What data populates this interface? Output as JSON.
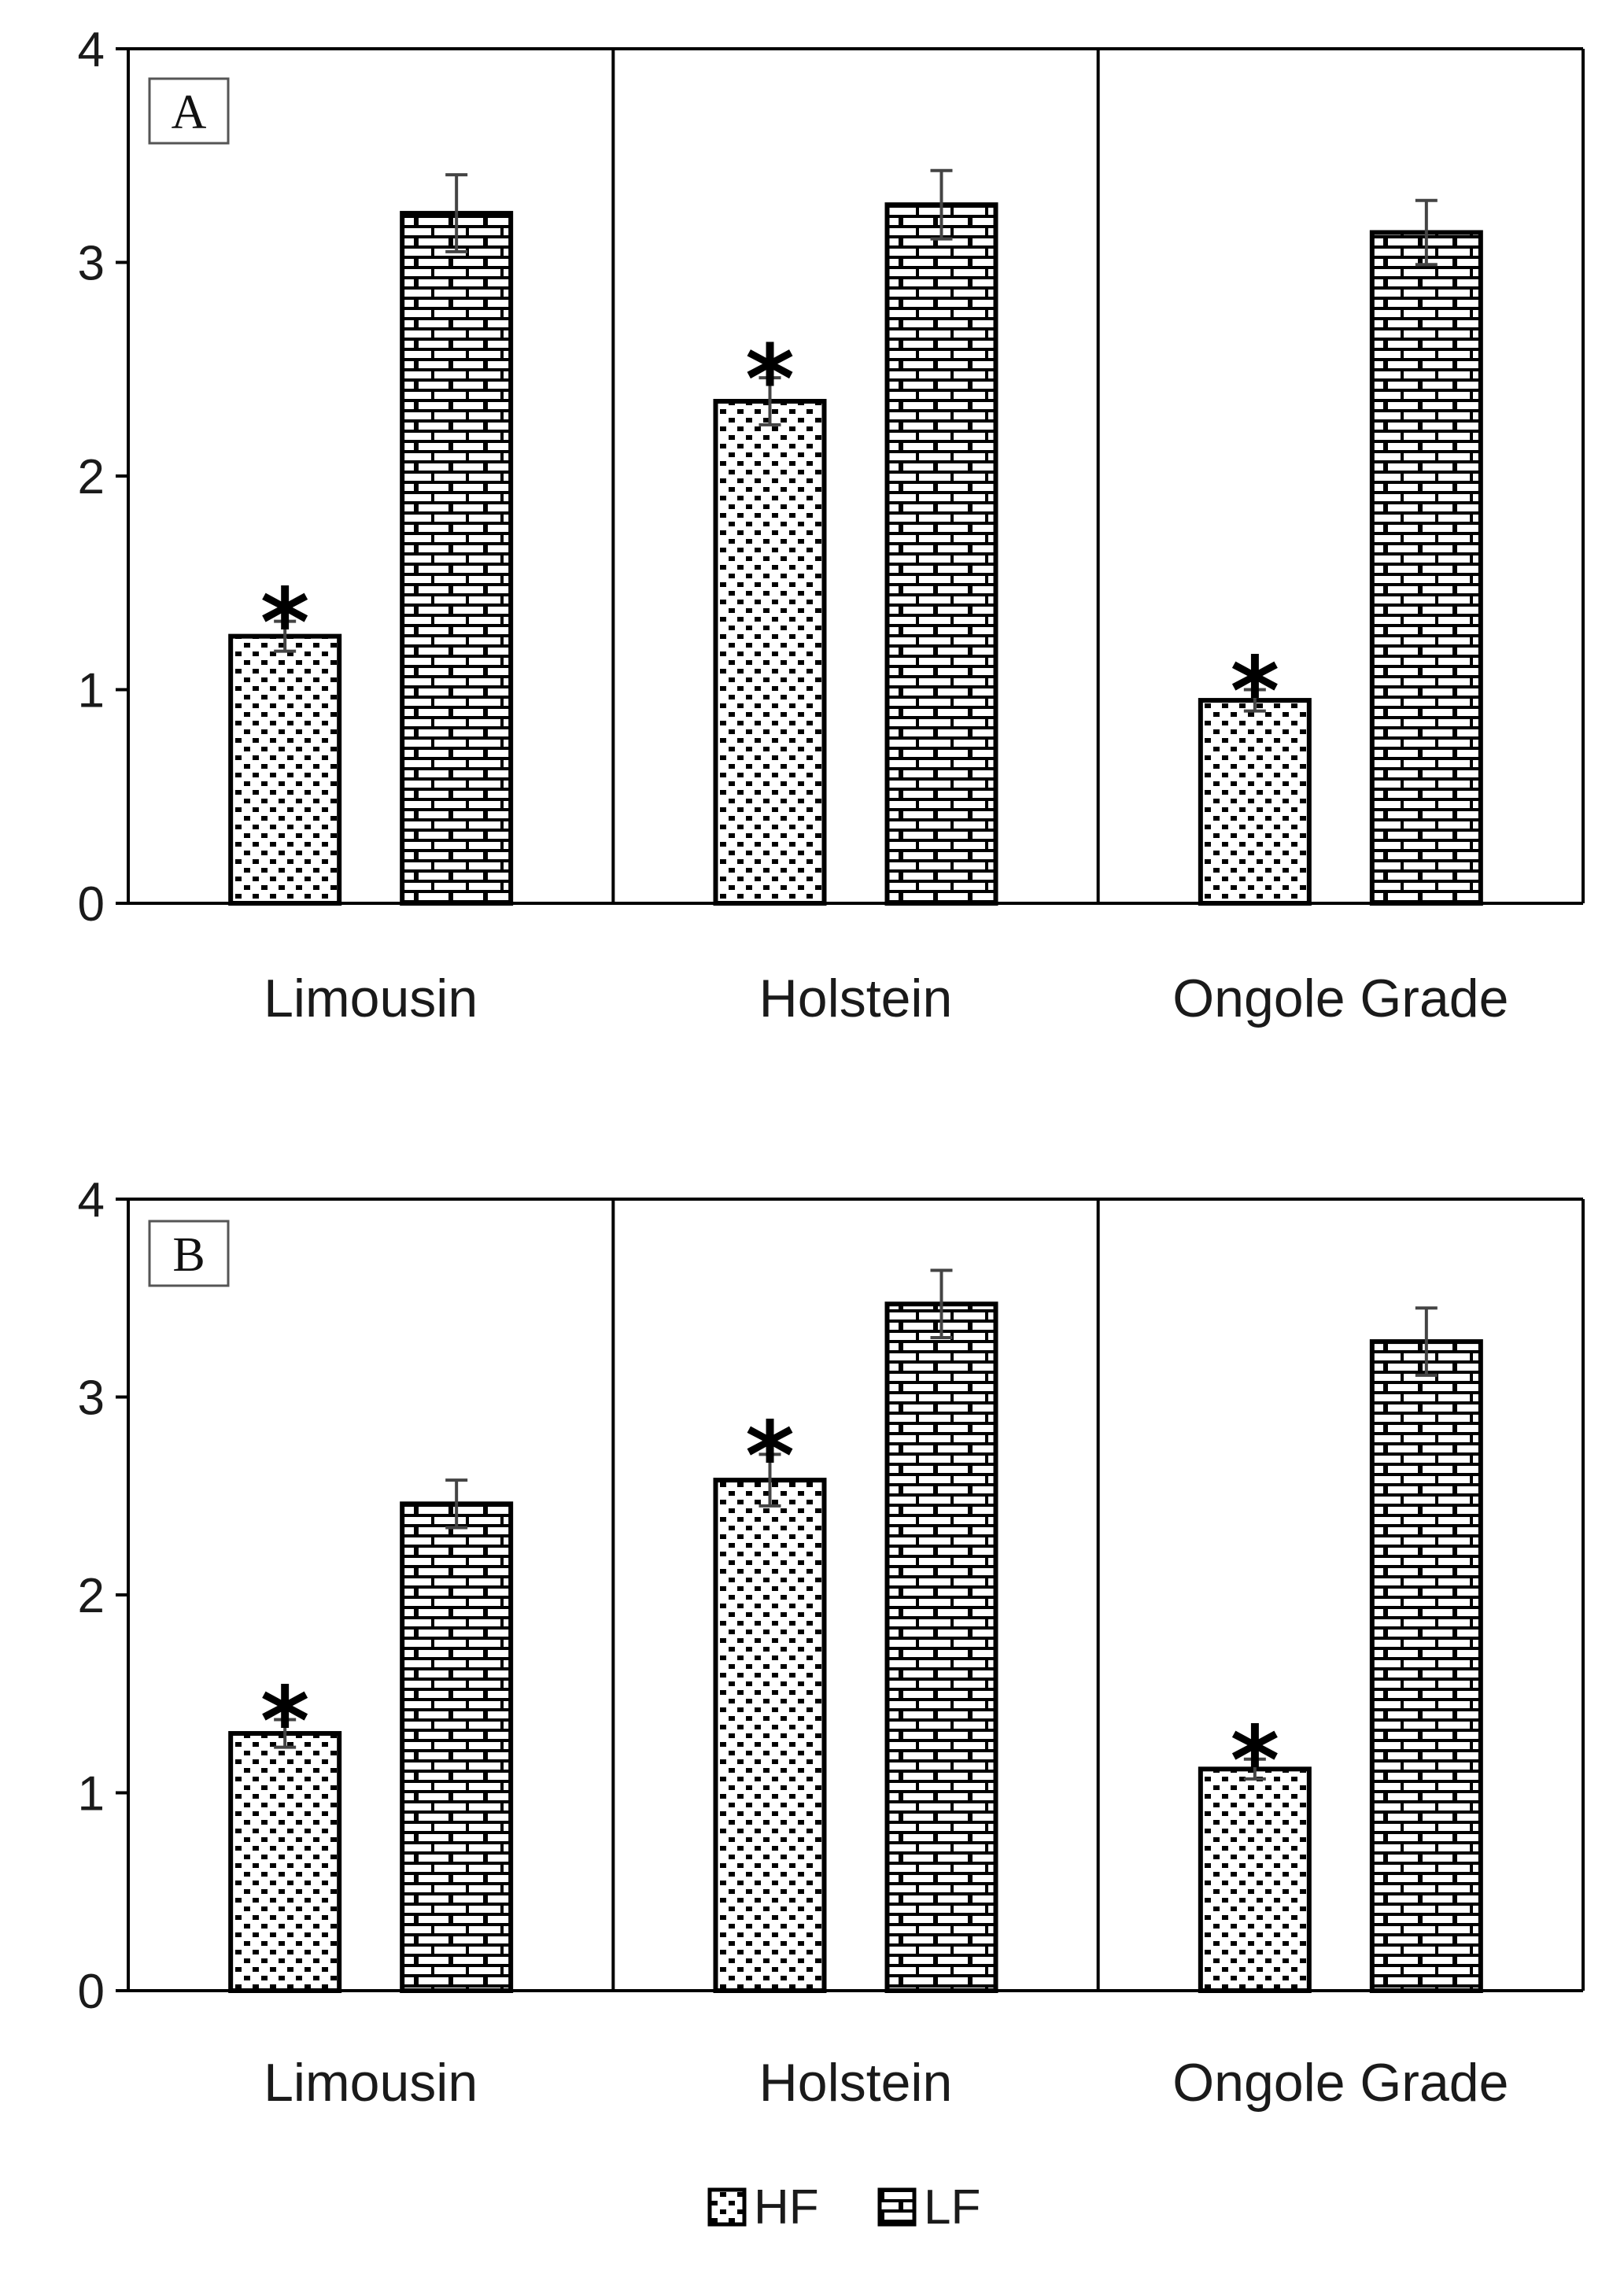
{
  "chart_data": [
    {
      "type": "bar",
      "panel_label": "A",
      "categories": [
        "Limousin",
        "Holstein",
        "Ongole Grade"
      ],
      "series": [
        {
          "name": "HF",
          "pattern": "dots",
          "values": [
            1.25,
            2.35,
            0.95
          ],
          "errors": [
            0.07,
            0.11,
            0.05
          ],
          "significant": [
            true,
            true,
            true
          ],
          "marker": "*"
        },
        {
          "name": "LF",
          "pattern": "brick",
          "values": [
            3.23,
            3.27,
            3.14
          ],
          "errors": [
            0.18,
            0.16,
            0.15
          ],
          "significant": [
            false,
            false,
            false
          ]
        }
      ],
      "ylim": [
        0,
        4
      ],
      "yticks": [
        0,
        1,
        2,
        3,
        4
      ],
      "xlabel": "",
      "ylabel": "",
      "title": ""
    },
    {
      "type": "bar",
      "panel_label": "B",
      "categories": [
        "Limousin",
        "Holstein",
        "Ongole Grade"
      ],
      "series": [
        {
          "name": "HF",
          "pattern": "dots",
          "values": [
            1.3,
            2.58,
            1.12
          ],
          "errors": [
            0.07,
            0.13,
            0.05
          ],
          "significant": [
            true,
            true,
            true
          ],
          "marker": "*"
        },
        {
          "name": "LF",
          "pattern": "brick",
          "values": [
            2.46,
            3.47,
            3.28
          ],
          "errors": [
            0.12,
            0.17,
            0.17
          ],
          "significant": [
            false,
            false,
            false
          ]
        }
      ],
      "ylim": [
        0,
        4
      ],
      "yticks": [
        0,
        1,
        2,
        3,
        4
      ],
      "xlabel": "",
      "ylabel": "",
      "title": ""
    }
  ],
  "legend": {
    "placement": "bottom-center",
    "items": [
      {
        "label": "HF",
        "pattern": "dots"
      },
      {
        "label": "LF",
        "pattern": "brick"
      }
    ]
  }
}
